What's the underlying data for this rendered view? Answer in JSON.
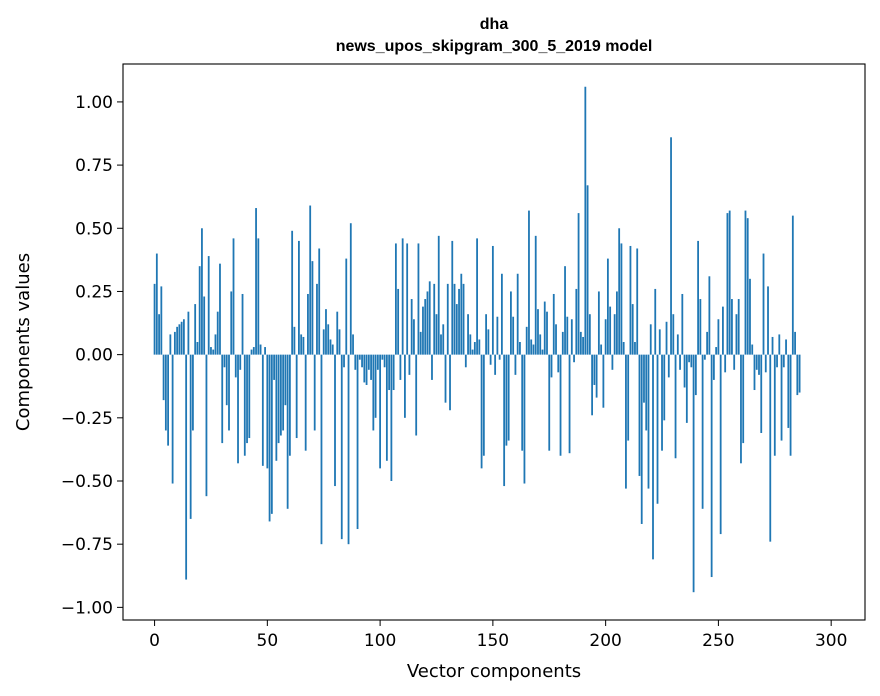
{
  "chart_data": {
    "type": "bar",
    "title_line1": "dha",
    "title_line2": "news_upos_skipgram_300_5_2019 model",
    "xlabel": "Vector components",
    "ylabel": "Components values",
    "xlim": [
      -14,
      315
    ],
    "ylim": [
      -1.05,
      1.15
    ],
    "xticks": [
      0,
      50,
      100,
      150,
      200,
      250,
      300
    ],
    "yticks": [
      -1.0,
      -0.75,
      -0.5,
      -0.25,
      0.0,
      0.25,
      0.5,
      0.75,
      1.0
    ],
    "ytick_labels": [
      "−1.00",
      "−0.75",
      "−0.50",
      "−0.25",
      "0.00",
      "0.25",
      "0.50",
      "0.75",
      "1.00"
    ],
    "bar_color": "#1f77b4",
    "values": [
      0.28,
      0.4,
      0.16,
      0.27,
      -0.18,
      -0.3,
      -0.36,
      0.08,
      -0.51,
      0.09,
      0.11,
      0.12,
      0.13,
      0.14,
      -0.89,
      0.17,
      -0.65,
      -0.3,
      0.2,
      0.05,
      0.35,
      0.5,
      0.23,
      -0.56,
      0.39,
      0.03,
      0.02,
      0.08,
      0.17,
      0.36,
      -0.35,
      -0.05,
      -0.2,
      -0.3,
      0.25,
      0.46,
      -0.09,
      -0.43,
      -0.06,
      0.24,
      -0.4,
      -0.35,
      -0.33,
      0.02,
      0.03,
      0.58,
      0.46,
      0.04,
      -0.44,
      0.03,
      -0.45,
      -0.66,
      -0.63,
      -0.1,
      -0.42,
      -0.35,
      -0.32,
      -0.3,
      -0.2,
      -0.61,
      -0.4,
      0.49,
      0.11,
      -0.33,
      0.45,
      0.08,
      0.07,
      -0.38,
      0.24,
      0.59,
      0.37,
      -0.3,
      0.28,
      0.42,
      -0.75,
      0.1,
      0.18,
      0.12,
      0.06,
      0.04,
      -0.52,
      0.17,
      0.1,
      -0.73,
      -0.05,
      0.38,
      -0.75,
      0.52,
      0.08,
      -0.06,
      -0.69,
      -0.02,
      -0.05,
      -0.11,
      -0.12,
      -0.06,
      -0.1,
      -0.3,
      -0.25,
      -0.06,
      -0.45,
      -0.02,
      -0.05,
      -0.42,
      -0.14,
      -0.5,
      -0.14,
      0.44,
      0.26,
      -0.1,
      0.46,
      -0.25,
      0.44,
      -0.08,
      0.22,
      0.14,
      -0.32,
      0.44,
      0.09,
      0.19,
      0.22,
      0.25,
      0.29,
      -0.1,
      0.28,
      0.16,
      0.47,
      0.08,
      0.12,
      -0.19,
      0.28,
      -0.22,
      0.45,
      0.28,
      0.2,
      0.26,
      0.32,
      0.28,
      -0.05,
      0.16,
      0.08,
      0.02,
      0.05,
      0.46,
      0.06,
      -0.45,
      -0.4,
      0.16,
      0.1,
      -0.04,
      0.43,
      -0.08,
      0.15,
      -0.02,
      0.32,
      -0.52,
      -0.36,
      -0.34,
      0.25,
      0.15,
      -0.08,
      0.32,
      0.05,
      -0.38,
      -0.51,
      0.11,
      0.57,
      0.06,
      0.04,
      0.47,
      0.18,
      0.08,
      0.02,
      0.21,
      0.17,
      -0.38,
      -0.09,
      0.24,
      0.12,
      -0.07,
      -0.4,
      0.09,
      0.35,
      0.15,
      -0.39,
      0.14,
      -0.03,
      0.26,
      0.56,
      0.09,
      0.07,
      1.06,
      0.67,
      0.16,
      -0.24,
      -0.12,
      -0.17,
      0.25,
      0.04,
      -0.21,
      0.14,
      0.38,
      0.19,
      -0.06,
      0.16,
      0.25,
      0.5,
      0.44,
      0.05,
      -0.53,
      -0.34,
      0.43,
      0.2,
      0.05,
      0.42,
      -0.48,
      -0.67,
      -0.19,
      -0.3,
      -0.53,
      0.12,
      -0.81,
      0.26,
      -0.59,
      0.1,
      -0.38,
      -0.26,
      0.13,
      -0.09,
      0.86,
      0.16,
      -0.41,
      0.08,
      -0.06,
      0.24,
      -0.13,
      -0.27,
      -0.03,
      -0.05,
      -0.94,
      -0.16,
      0.45,
      0.22,
      -0.61,
      -0.02,
      0.09,
      0.31,
      -0.88,
      -0.1,
      0.03,
      0.14,
      -0.71,
      0.19,
      -0.07,
      0.56,
      0.57,
      0.22,
      -0.06,
      0.16,
      0.22,
      -0.43,
      -0.35,
      0.57,
      0.54,
      0.3,
      0.04,
      -0.14,
      -0.06,
      -0.08,
      -0.31,
      0.4,
      -0.07,
      0.27,
      -0.74,
      0.07,
      -0.4,
      -0.05,
      0.08,
      -0.34,
      -0.05,
      0.06,
      -0.29,
      -0.4,
      0.55,
      0.09,
      -0.16,
      -0.15
    ]
  }
}
